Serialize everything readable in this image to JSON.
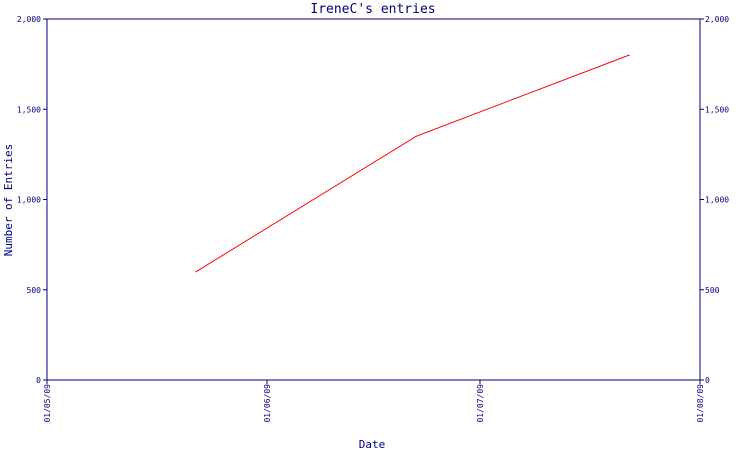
{
  "chart_data": {
    "type": "line",
    "title": "IreneC's entries",
    "xlabel": "Date",
    "ylabel": "Number of Entries",
    "x_ticks": [
      "01/05/09",
      "01/06/09",
      "01/07/09",
      "01/08/09"
    ],
    "y_ticks": [
      "0",
      "500",
      "1,000",
      "1,500",
      "2,000"
    ],
    "ylim": [
      0,
      2000
    ],
    "grid": false,
    "series": [
      {
        "x": [
          "2009-05-22",
          "2009-06-22",
          "2009-07-22"
        ],
        "values": [
          600,
          1350,
          1800
        ],
        "color": "#ff0000"
      }
    ]
  },
  "colors": {
    "axis": "#000080",
    "line": "#ff0000"
  }
}
